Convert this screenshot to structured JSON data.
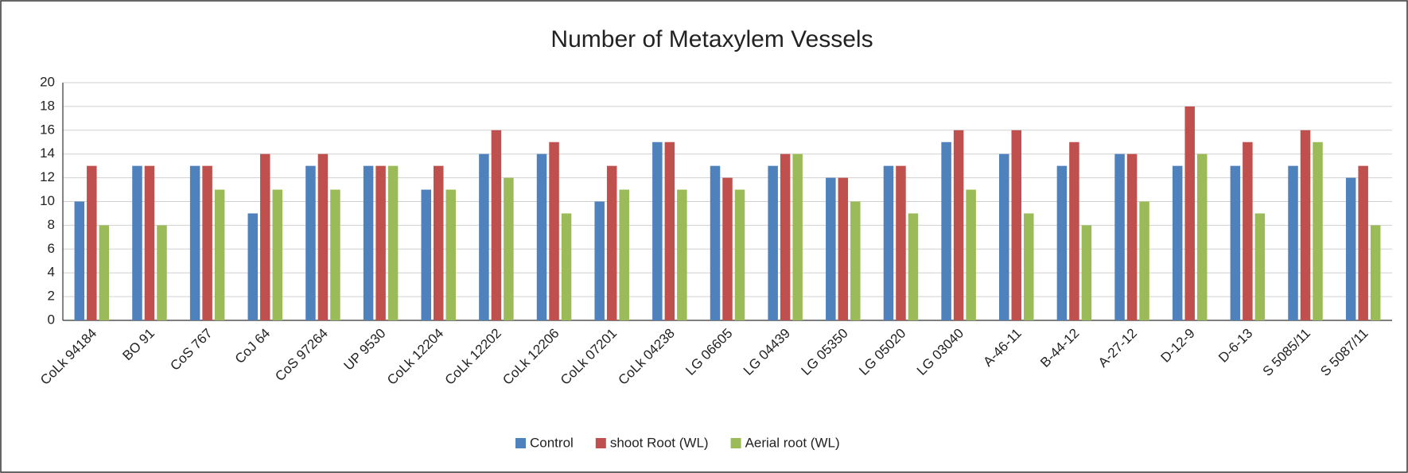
{
  "chart_data": {
    "type": "bar",
    "title": "Number of Metaxylem Vessels",
    "categories": [
      "CoLk 94184",
      "BO 91",
      "CoS 767",
      "CoJ 64",
      "CoS 97264",
      "UP 9530",
      "CoLk 12204",
      "CoLk 12202",
      "CoLk 12206",
      "CoLk 07201",
      "CoLk 04238",
      "LG 06605",
      "LG 04439",
      "LG 05350",
      "LG 05020",
      "LG 03040",
      "A-46-11",
      "B-44-12",
      "A-27-12",
      "D-12-9",
      "D-6-13",
      "S 5085/11",
      "S 5087/11"
    ],
    "series": [
      {
        "name": "Control",
        "color": "#4f81bd",
        "values": [
          10,
          13,
          13,
          9,
          13,
          13,
          11,
          14,
          14,
          10,
          15,
          13,
          13,
          12,
          13,
          15,
          14,
          13,
          14,
          13,
          13,
          13,
          12
        ]
      },
      {
        "name": "shoot Root (WL)",
        "color": "#c0504d",
        "values": [
          13,
          13,
          13,
          14,
          14,
          13,
          13,
          16,
          15,
          13,
          15,
          12,
          14,
          12,
          13,
          16,
          16,
          15,
          14,
          18,
          15,
          16,
          13
        ]
      },
      {
        "name": "Aerial root (WL)",
        "color": "#9bbb59",
        "values": [
          8,
          8,
          11,
          11,
          11,
          13,
          11,
          12,
          9,
          11,
          11,
          11,
          14,
          10,
          9,
          11,
          9,
          8,
          10,
          14,
          9,
          15,
          8
        ]
      }
    ],
    "ylim": [
      0,
      20
    ],
    "yticks": [
      0,
      2,
      4,
      6,
      8,
      10,
      12,
      14,
      16,
      18,
      20
    ],
    "grid": true,
    "legend": "bottom"
  }
}
